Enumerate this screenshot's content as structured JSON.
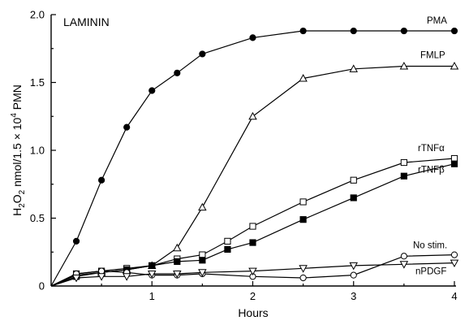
{
  "chart_data": {
    "type": "line",
    "title": "LAMININ",
    "xlabel": "Hours",
    "ylabel": "H2O2 nmol/1.5×10^4 PMN",
    "ylabel_parts": {
      "h": "H",
      "sub2a": "2",
      "o": "O",
      "sub2b": "2",
      "rest": " nmol/1.5 × 10",
      "sup": "4",
      "tail": " PMN"
    },
    "xlim": [
      0,
      4
    ],
    "ylim": [
      0,
      2.0
    ],
    "x_ticks": [
      1,
      2,
      3,
      4
    ],
    "x_tick_labels": [
      "1",
      "2",
      "3",
      "4"
    ],
    "y_ticks": [
      0,
      0.5,
      1.0,
      1.5,
      2.0
    ],
    "y_tick_labels": [
      "0",
      "0.5",
      "1.0",
      "1.5",
      "2.0"
    ],
    "grid": false,
    "series": [
      {
        "name": "PMA",
        "marker": "filled-circle",
        "x": [
          0,
          0.25,
          0.5,
          0.75,
          1.0,
          1.25,
          1.5,
          2.0,
          2.5,
          3.0,
          3.5,
          4.0
        ],
        "y": [
          0,
          0.33,
          0.78,
          1.17,
          1.44,
          1.57,
          1.71,
          1.83,
          1.88,
          1.88,
          1.88,
          1.88
        ]
      },
      {
        "name": "FMLP",
        "marker": "open-triangle-up",
        "x": [
          0,
          0.25,
          0.5,
          0.75,
          1.0,
          1.25,
          1.5,
          2.0,
          2.5,
          3.0,
          3.5,
          4.0
        ],
        "y": [
          0,
          0.08,
          0.1,
          0.12,
          0.15,
          0.28,
          0.58,
          1.25,
          1.53,
          1.6,
          1.62,
          1.62
        ]
      },
      {
        "name": "rTNFα",
        "marker": "open-square",
        "x": [
          0,
          0.25,
          0.5,
          0.75,
          1.0,
          1.25,
          1.5,
          1.75,
          2.0,
          2.5,
          3.0,
          3.5,
          4.0
        ],
        "y": [
          0,
          0.09,
          0.11,
          0.13,
          0.15,
          0.2,
          0.23,
          0.33,
          0.44,
          0.62,
          0.78,
          0.91,
          0.94
        ]
      },
      {
        "name": "rTNFβ",
        "marker": "filled-square",
        "x": [
          0,
          0.25,
          0.5,
          0.75,
          1.0,
          1.25,
          1.5,
          1.75,
          2.0,
          2.5,
          3.0,
          3.5,
          4.0
        ],
        "y": [
          0,
          0.07,
          0.1,
          0.12,
          0.15,
          0.18,
          0.19,
          0.27,
          0.32,
          0.49,
          0.65,
          0.81,
          0.9
        ]
      },
      {
        "name": "No stim.",
        "marker": "open-circle",
        "x": [
          0,
          0.25,
          0.5,
          0.75,
          1.0,
          1.25,
          1.5,
          2.0,
          2.5,
          3.0,
          3.5,
          4.0
        ],
        "y": [
          0,
          0.09,
          0.11,
          0.1,
          0.08,
          0.08,
          0.09,
          0.07,
          0.06,
          0.08,
          0.22,
          0.23
        ]
      },
      {
        "name": "nPDGF",
        "marker": "open-triangle-down",
        "x": [
          0,
          0.25,
          0.5,
          0.75,
          1.0,
          1.25,
          1.5,
          2.0,
          2.5,
          3.0,
          3.5,
          4.0
        ],
        "y": [
          0,
          0.06,
          0.07,
          0.07,
          0.09,
          0.09,
          0.1,
          0.11,
          0.13,
          0.15,
          0.16,
          0.17
        ]
      }
    ]
  }
}
